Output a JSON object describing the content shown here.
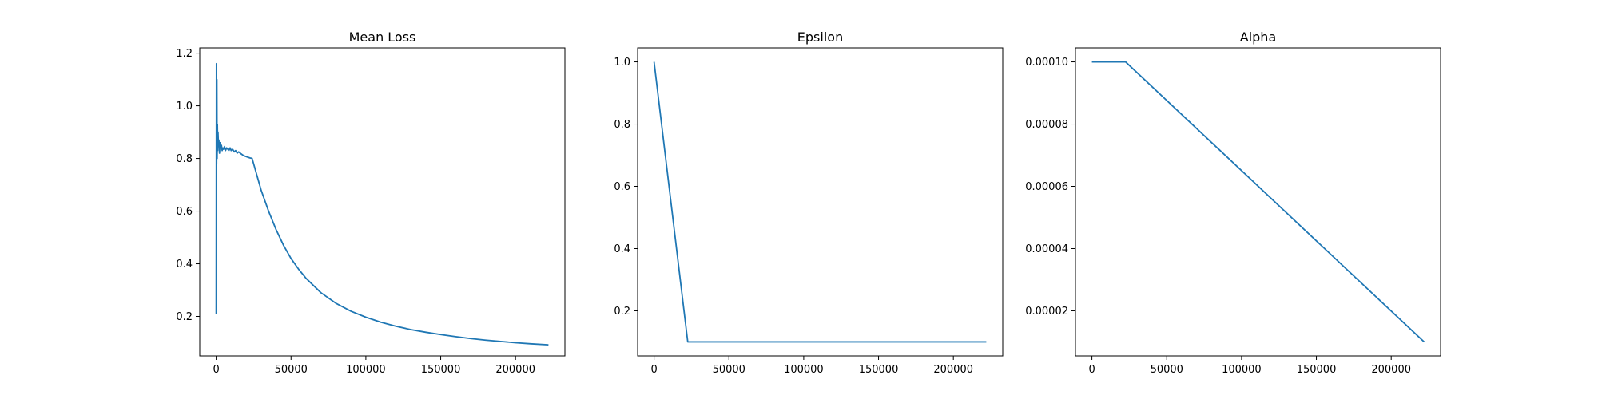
{
  "figure": {
    "line_color": "#1f77b4",
    "background": "#ffffff"
  },
  "chart_data": [
    {
      "type": "line",
      "title": "Mean Loss",
      "xlabel": "",
      "ylabel": "",
      "xlim": [
        -11000,
        233000
      ],
      "ylim": [
        0.05,
        1.22
      ],
      "xticks": [
        0,
        50000,
        100000,
        150000,
        200000
      ],
      "xtick_labels": [
        "0",
        "50000",
        "100000",
        "150000",
        "200000"
      ],
      "yticks": [
        0.2,
        0.4,
        0.6,
        0.8,
        1.0,
        1.2
      ],
      "ytick_labels": [
        "0.2",
        "0.4",
        "0.6",
        "0.8",
        "1.0",
        "1.2"
      ],
      "grid": false,
      "series": [
        {
          "x": [
            0,
            150,
            300,
            450,
            600,
            800,
            1000,
            1200,
            1500,
            1800,
            2200,
            2600,
            3000,
            3500,
            4000,
            4500,
            5000,
            5600,
            6200,
            7000,
            7800,
            8500,
            9300,
            10000,
            11000,
            12000,
            13000,
            14000,
            15000,
            16500,
            18000,
            19500,
            21000,
            22500,
            24000,
            27000,
            30000,
            35000,
            40000,
            45000,
            50000,
            55000,
            60000,
            70000,
            80000,
            90000,
            100000,
            110000,
            120000,
            130000,
            140000,
            150000,
            160000,
            170000,
            180000,
            190000,
            200000,
            210000,
            222000
          ],
          "y": [
            0.21,
            1.16,
            0.78,
            1.1,
            0.8,
            0.93,
            0.83,
            0.9,
            0.85,
            0.87,
            0.82,
            0.86,
            0.84,
            0.85,
            0.83,
            0.84,
            0.835,
            0.845,
            0.83,
            0.84,
            0.835,
            0.83,
            0.84,
            0.83,
            0.835,
            0.825,
            0.83,
            0.82,
            0.825,
            0.818,
            0.812,
            0.808,
            0.805,
            0.802,
            0.8,
            0.74,
            0.68,
            0.6,
            0.53,
            0.47,
            0.42,
            0.38,
            0.345,
            0.29,
            0.25,
            0.22,
            0.197,
            0.178,
            0.163,
            0.15,
            0.14,
            0.131,
            0.123,
            0.116,
            0.11,
            0.105,
            0.1,
            0.096,
            0.092
          ]
        }
      ]
    },
    {
      "type": "line",
      "title": "Epsilon",
      "xlabel": "",
      "ylabel": "",
      "xlim": [
        -11000,
        233000
      ],
      "ylim": [
        0.055,
        1.045
      ],
      "xticks": [
        0,
        50000,
        100000,
        150000,
        200000
      ],
      "xtick_labels": [
        "0",
        "50000",
        "100000",
        "150000",
        "200000"
      ],
      "yticks": [
        0.2,
        0.4,
        0.6,
        0.8,
        1.0
      ],
      "ytick_labels": [
        "0.2",
        "0.4",
        "0.6",
        "0.8",
        "1.0"
      ],
      "grid": false,
      "series": [
        {
          "x": [
            0,
            22500,
            222000
          ],
          "y": [
            1.0,
            0.1,
            0.1
          ]
        }
      ]
    },
    {
      "type": "line",
      "title": "Alpha",
      "xlabel": "",
      "ylabel": "",
      "xlim": [
        -11000,
        233000
      ],
      "ylim": [
        5.5e-06,
        0.0001045
      ],
      "xticks": [
        0,
        50000,
        100000,
        150000,
        200000
      ],
      "xtick_labels": [
        "0",
        "50000",
        "100000",
        "150000",
        "200000"
      ],
      "yticks": [
        2e-05,
        4e-05,
        6e-05,
        8e-05,
        0.0001
      ],
      "ytick_labels": [
        "0.00002",
        "0.00004",
        "0.00006",
        "0.00008",
        "0.00010"
      ],
      "grid": false,
      "series": [
        {
          "x": [
            0,
            22500,
            222000
          ],
          "y": [
            0.0001,
            0.0001,
            1e-05
          ]
        }
      ]
    }
  ]
}
